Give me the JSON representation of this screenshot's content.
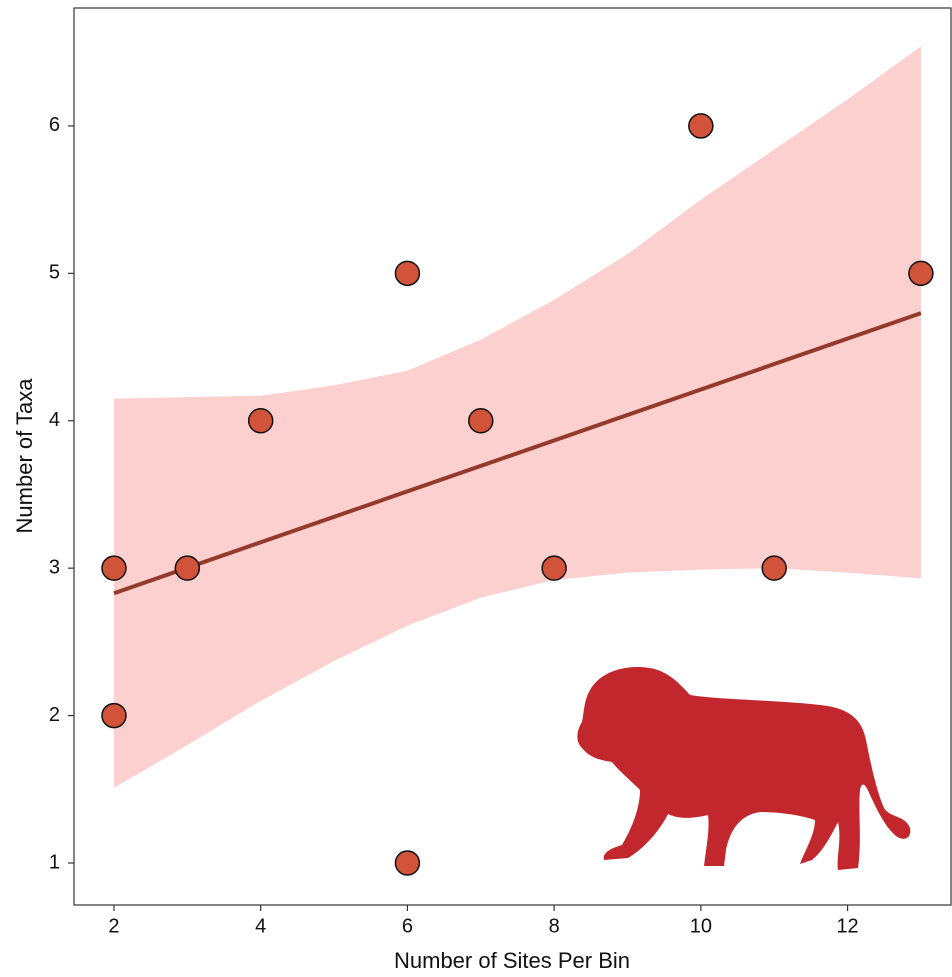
{
  "chart_data": {
    "type": "scatter",
    "xlabel": "Number of Sites Per Bin",
    "ylabel": "Number of Taxa",
    "xlim": [
      1.455,
      13.41
    ],
    "ylim": [
      0.715,
      6.8
    ],
    "xticks": [
      2,
      4,
      6,
      8,
      10,
      12
    ],
    "yticks": [
      1,
      2,
      3,
      4,
      5,
      6
    ],
    "points": {
      "color": "#d0533a",
      "x": [
        2,
        2,
        3,
        4,
        6,
        6,
        7,
        8,
        10,
        11,
        13
      ],
      "values": [
        3,
        2,
        3,
        4,
        5,
        1,
        4,
        3,
        6,
        3,
        5
      ]
    },
    "fit": {
      "color": "#943a2a",
      "x": [
        2,
        13
      ],
      "values": [
        2.83,
        4.73
      ]
    },
    "band": {
      "color": "#fdd0d0",
      "x": [
        2,
        3,
        4,
        5,
        6,
        7,
        8,
        9,
        10,
        11,
        12,
        13
      ],
      "upper": [
        4.15,
        4.16,
        4.17,
        4.24,
        4.34,
        4.55,
        4.82,
        5.13,
        5.5,
        5.84,
        6.18,
        6.54
      ],
      "lower": [
        1.51,
        1.8,
        2.1,
        2.37,
        2.61,
        2.8,
        2.92,
        2.97,
        2.99,
        3.0,
        2.97,
        2.93
      ]
    }
  }
}
